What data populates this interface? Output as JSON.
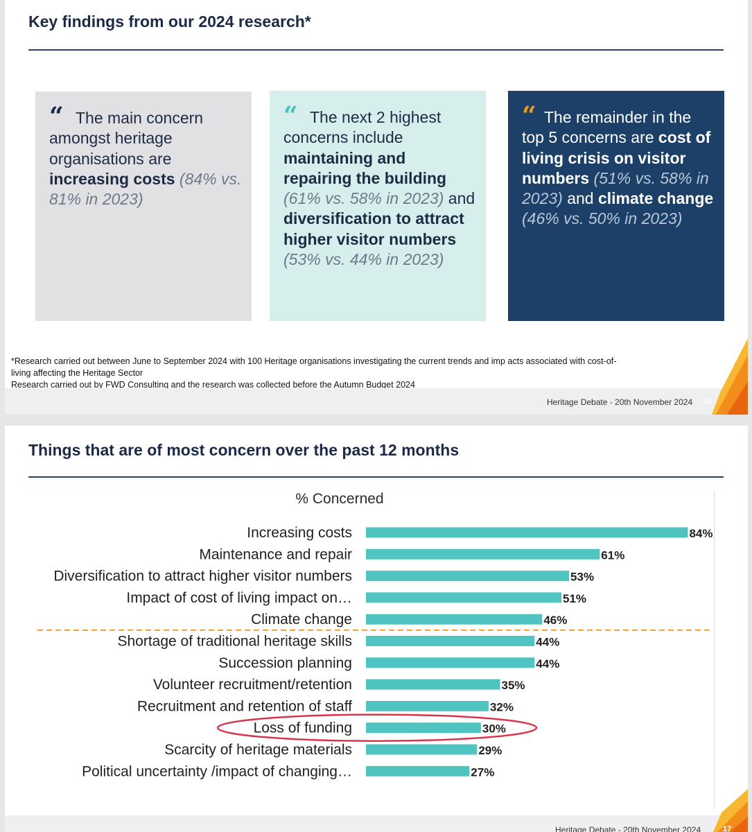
{
  "slide1": {
    "title": "Key findings from our 2024 research*",
    "boxes": [
      {
        "quote_glyph": "“",
        "text_pre": "The main concern amongst heritage organisations are ",
        "bold1": "increasing costs",
        "stat1": "(84% vs. 81% in 2023)",
        "color": "#e1e1e3"
      },
      {
        "quote_glyph": "“",
        "text_pre": "The next 2 highest concerns include ",
        "bold1": "maintaining and repairing the building",
        "stat1": "(61% vs. 58% in 2023)",
        "joiner": " and ",
        "bold2": "diversification to attract higher visitor numbers",
        "stat2": "(53% vs. 44% in 2023)",
        "color": "#d6eeec"
      },
      {
        "quote_glyph": "“",
        "text_pre": "The remainder in the top 5 concerns are ",
        "bold1": "cost of living crisis on visitor numbers",
        "stat1": "(51% vs. 58% in 2023)",
        "joiner": " and ",
        "bold2": "climate change",
        "stat2": "(46% vs. 50% in 2023)",
        "color": "#1c4068"
      }
    ],
    "footnote_line1": "*Research carried out between June to September 2024 with 100 Heritage organisations investigating the current trends and imp acts associated with cost-of-living affecting the Heritage Sector",
    "footnote_line2": "Research carried out by FWD Consulting and the research was collected before the Autumn Budget 2024",
    "footer": "Heritage Debate - 20th November 2024",
    "page_number": "16"
  },
  "slide2": {
    "title": "Things that are of most concern over the past 12 months",
    "footer": "Heritage Debate - 20th November 2024",
    "page_number": "17"
  },
  "colors": {
    "bar": "#4fc4c1",
    "divider": "#f0a030",
    "highlight_ellipse": "#d9364e",
    "accent_orange": "#f39a1c",
    "navy": "#1c4068"
  },
  "chart_data": {
    "type": "bar",
    "orientation": "horizontal",
    "title": "% Concerned",
    "categories": [
      "Increasing costs",
      "Maintenance and repair",
      "Diversification to attract higher visitor numbers",
      "Impact of cost of living impact on…",
      "Climate change",
      "Shortage of traditional heritage skills",
      "Succession planning",
      "Volunteer recruitment/retention",
      "Recruitment and retention of staff",
      "Loss of funding",
      "Scarcity of heritage materials",
      "Political uncertainty /impact of changing…"
    ],
    "values": [
      84,
      61,
      53,
      51,
      46,
      44,
      44,
      35,
      32,
      30,
      29,
      27
    ],
    "value_labels": [
      "84%",
      "61%",
      "53%",
      "51%",
      "46%",
      "44%",
      "44%",
      "35%",
      "32%",
      "30%",
      "29%",
      "27%"
    ],
    "xlim": [
      0,
      85
    ],
    "top5_divider_after_index": 4,
    "highlighted_category": "Loss of funding",
    "legend": "none",
    "grid": false
  }
}
